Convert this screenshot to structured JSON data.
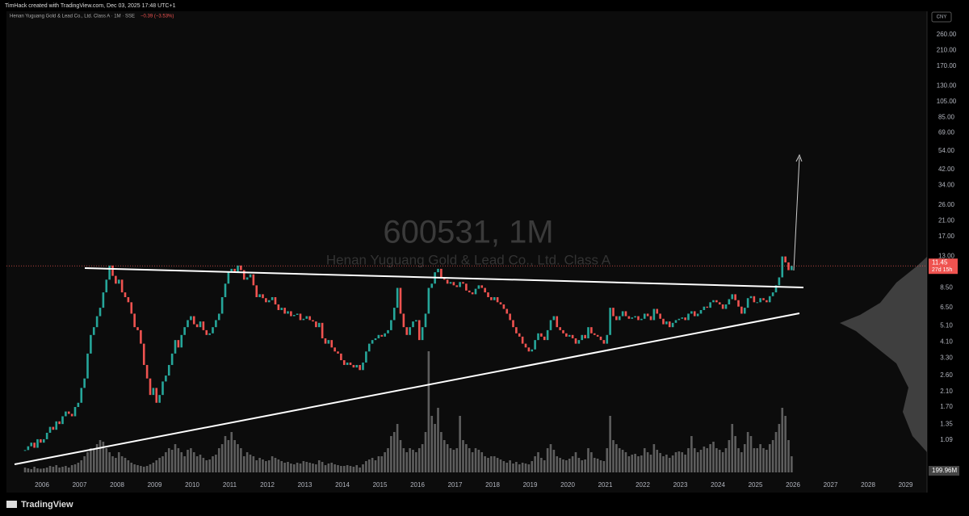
{
  "header": {
    "credit": "TimHack created with TradingView.com, Dec 03, 2025 17:48 UTC+1",
    "symbol": "Henan Yuguang Gold & Lead Co., Ltd. Class A · 1M · SSE",
    "change": "−0.39 (−3.53%)",
    "currency": "CNY"
  },
  "footer": {
    "brand": "TradingView"
  },
  "chart_data": {
    "type": "candlestick",
    "title": "600531, 1M",
    "subtitle": "Henan Yuguang Gold & Lead Co., Ltd. Class A",
    "log_scale": true,
    "up_color": "#26a69a",
    "down_color": "#ef5350",
    "volume_color": "#7a7a7a",
    "values": [
      0.95,
      1.0,
      1.05,
      0.98,
      1.1,
      1.05,
      1.1,
      1.2,
      1.3,
      1.25,
      1.4,
      1.35,
      1.5,
      1.6,
      1.55,
      1.5,
      1.7,
      1.8,
      2.2,
      2.5,
      3.5,
      4.5,
      5.0,
      5.8,
      6.5,
      8.0,
      9.5,
      11.5,
      10,
      9.0,
      9.5,
      8.0,
      7.5,
      7.0,
      6.0,
      5.0,
      4.8,
      4.0,
      3.0,
      2.5,
      2.0,
      2.2,
      1.8,
      2.0,
      2.4,
      2.6,
      3.0,
      3.5,
      4.2,
      3.8,
      4.5,
      5.0,
      5.5,
      5.8,
      5.2,
      5.0,
      5.4,
      4.8,
      4.5,
      4.6,
      5.0,
      5.5,
      6.0,
      7.5,
      9.0,
      10.5,
      11.0,
      10.5,
      11.5,
      10.8,
      9.5,
      9.8,
      10.2,
      8.8,
      7.5,
      7.8,
      7.4,
      7.0,
      7.2,
      7.5,
      6.8,
      6.3,
      6.5,
      6.0,
      6.2,
      5.8,
      5.9,
      6.0,
      5.5,
      5.6,
      5.8,
      5.5,
      5.4,
      5.0,
      5.3,
      4.3,
      4.0,
      4.2,
      3.8,
      3.6,
      3.5,
      3.2,
      3.0,
      3.1,
      3.0,
      2.9,
      3.0,
      2.8,
      3.1,
      3.6,
      4.0,
      4.2,
      4.3,
      4.5,
      4.4,
      4.6,
      4.8,
      5.5,
      6.5,
      8.5,
      6.0,
      5.0,
      4.5,
      5.0,
      5.4,
      5.5,
      4.2,
      5.0,
      6.0,
      8.5,
      9.0,
      10.5,
      11.0,
      9.8,
      9.5,
      9.0,
      9.2,
      8.8,
      8.6,
      9.2,
      9.0,
      8.2,
      8.0,
      7.8,
      8.4,
      8.8,
      8.5,
      8.0,
      7.5,
      7.2,
      7.5,
      7.0,
      6.8,
      6.4,
      6.0,
      5.5,
      5.0,
      4.6,
      4.4,
      4.0,
      3.8,
      3.6,
      3.7,
      4.2,
      4.6,
      4.4,
      4.2,
      4.8,
      5.5,
      5.8,
      5.0,
      4.8,
      4.6,
      4.4,
      4.5,
      4.3,
      4.0,
      4.2,
      4.5,
      4.3,
      5.0,
      4.6,
      4.5,
      4.4,
      4.2,
      4.0,
      4.5,
      6.5,
      5.8,
      5.5,
      5.8,
      6.2,
      5.8,
      5.6,
      5.7,
      5.8,
      5.5,
      5.6,
      6.0,
      5.8,
      5.5,
      6.4,
      6.0,
      5.6,
      5.2,
      5.4,
      5.0,
      5.3,
      5.5,
      5.6,
      5.7,
      5.5,
      6.0,
      6.2,
      5.8,
      6.0,
      6.3,
      6.6,
      6.5,
      7.0,
      7.2,
      7.0,
      6.8,
      6.4,
      6.8,
      7.3,
      7.8,
      7.2,
      6.6,
      6.0,
      6.5,
      7.4,
      7.6,
      7.0,
      7.0,
      7.4,
      7.2,
      7.0,
      7.6,
      8.0,
      8.8,
      9.8,
      13.0,
      12.0,
      10.8,
      11.45
    ],
    "volume": [
      60,
      50,
      40,
      70,
      50,
      45,
      50,
      60,
      80,
      70,
      90,
      60,
      70,
      80,
      60,
      90,
      100,
      120,
      150,
      200,
      250,
      300,
      280,
      350,
      400,
      380,
      300,
      250,
      200,
      180,
      250,
      200,
      180,
      150,
      120,
      100,
      90,
      80,
      70,
      80,
      100,
      120,
      150,
      180,
      200,
      250,
      300,
      280,
      350,
      300,
      250,
      200,
      280,
      300,
      250,
      200,
      220,
      180,
      150,
      160,
      200,
      220,
      300,
      350,
      450,
      400,
      500,
      400,
      350,
      300,
      200,
      250,
      220,
      200,
      150,
      180,
      160,
      140,
      150,
      200,
      180,
      160,
      140,
      120,
      130,
      110,
      100,
      120,
      110,
      140,
      130,
      120,
      110,
      100,
      150,
      130,
      90,
      110,
      120,
      100,
      90,
      80,
      80,
      90,
      80,
      70,
      90,
      60,
      100,
      140,
      160,
      180,
      150,
      200,
      200,
      250,
      300,
      450,
      500,
      600,
      400,
      300,
      250,
      300,
      280,
      250,
      300,
      350,
      500,
      1500,
      700,
      600,
      800,
      500,
      400,
      350,
      300,
      280,
      300,
      700,
      400,
      350,
      300,
      250,
      300,
      280,
      250,
      200,
      180,
      200,
      200,
      180,
      160,
      140,
      120,
      150,
      110,
      130,
      100,
      120,
      110,
      100,
      140,
      200,
      250,
      180,
      150,
      300,
      350,
      280,
      200,
      180,
      160,
      150,
      170,
      200,
      250,
      180,
      150,
      160,
      300,
      250,
      180,
      170,
      150,
      140,
      300,
      700,
      400,
      350,
      300,
      280,
      250,
      200,
      220,
      230,
      200,
      210,
      300,
      250,
      220,
      350,
      280,
      240,
      200,
      220,
      180,
      210,
      250,
      260,
      250,
      220,
      300,
      450,
      300,
      250,
      280,
      320,
      300,
      350,
      380,
      300,
      280,
      250,
      300,
      400,
      600,
      450,
      300,
      250,
      350,
      500,
      450,
      300,
      300,
      350,
      300,
      280,
      350,
      400,
      500,
      600,
      800,
      700,
      400,
      199.96
    ],
    "volume_label": "199.96M",
    "countdown": "27d 15h",
    "xticks": [
      2006,
      2007,
      2008,
      2009,
      2010,
      2011,
      2012,
      2013,
      2014,
      2015,
      2016,
      2017,
      2018,
      2019,
      2020,
      2021,
      2022,
      2023,
      2024,
      2025,
      2026,
      2027,
      2028,
      2029
    ],
    "ylim": [
      0.63,
      353
    ],
    "yticks": [
      {
        "value": 260,
        "label": "260.00"
      },
      {
        "value": 210,
        "label": "210.00"
      },
      {
        "value": 170,
        "label": "170.00"
      },
      {
        "value": 130,
        "label": "130.00"
      },
      {
        "value": 105,
        "label": "105.00"
      },
      {
        "value": 85,
        "label": "85.00"
      },
      {
        "value": 69,
        "label": "69.00"
      },
      {
        "value": 54,
        "label": "54.00"
      },
      {
        "value": 42,
        "label": "42.00"
      },
      {
        "value": 34,
        "label": "34.00"
      },
      {
        "value": 26,
        "label": "26.00"
      },
      {
        "value": 21,
        "label": "21.00"
      },
      {
        "value": 17,
        "label": "17.00"
      },
      {
        "value": 13,
        "label": "13.00"
      },
      {
        "value": 8.5,
        "label": "8.50"
      },
      {
        "value": 6.5,
        "label": "6.50"
      },
      {
        "value": 5.1,
        "label": "5.10"
      },
      {
        "value": 4.1,
        "label": "4.10"
      },
      {
        "value": 3.3,
        "label": "3.30"
      },
      {
        "value": 2.6,
        "label": "2.60"
      },
      {
        "value": 2.1,
        "label": "2.10"
      },
      {
        "value": 1.7,
        "label": "1.70"
      },
      {
        "value": 1.35,
        "label": "1.35"
      },
      {
        "value": 1.09,
        "label": "1.09"
      }
    ]
  }
}
